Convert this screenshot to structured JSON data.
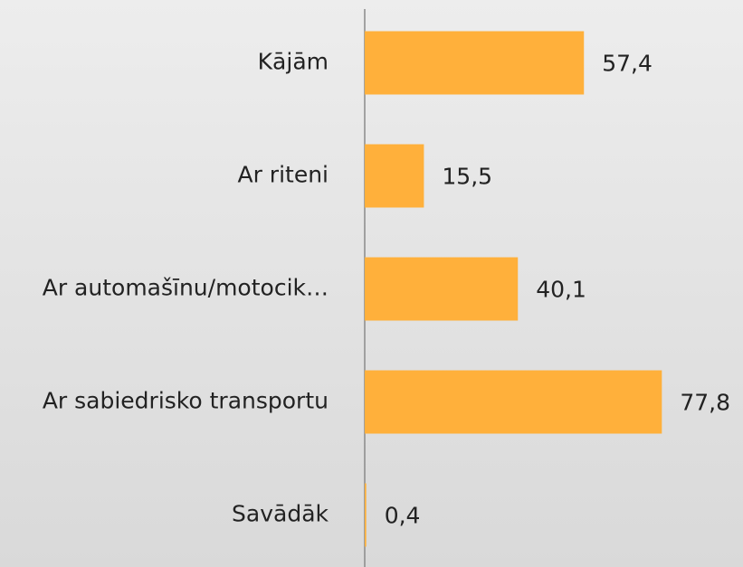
{
  "chart_data": {
    "type": "bar",
    "orientation": "horizontal",
    "categories": [
      "Kājām",
      "Ar riteni",
      "Ar automašīnu/motocik…",
      "Ar sabiedrisko transportu",
      "Savādāk"
    ],
    "values": [
      57.4,
      15.5,
      40.1,
      77.8,
      0.4
    ],
    "value_labels": [
      "57,4",
      "15,5",
      "40,1",
      "77,8",
      "0,4"
    ],
    "color": "#ffb03b"
  }
}
